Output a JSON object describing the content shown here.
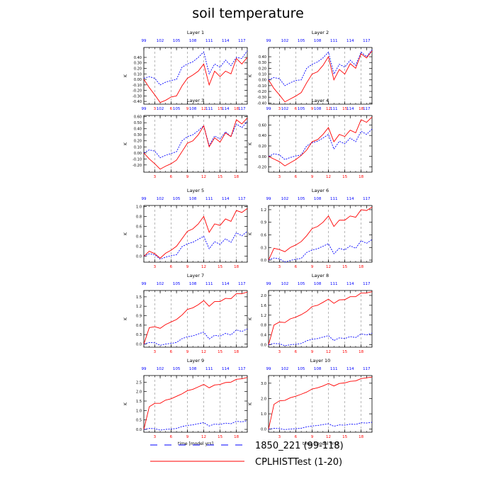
{
  "title": "soil temperature",
  "x_top_ticks": [
    "99",
    "102",
    "105",
    "108",
    "111",
    "114",
    "117"
  ],
  "x_bottom_ticks": [
    "3",
    "6",
    "9",
    "12",
    "15",
    "18"
  ],
  "xlabel": "time [model yrs]",
  "ylabel": "K",
  "colors": {
    "series_a": "#0000ff",
    "series_b": "#ff0000",
    "top_ticks": "#0000ff",
    "bottom_ticks": "#ff0000"
  },
  "legend": [
    {
      "label": "1850_221 (99-118)",
      "style": "dashed",
      "color": "#0000ff"
    },
    {
      "label": "CPLHISTTest (1-20)",
      "style": "solid",
      "color": "#ff0000"
    }
  ],
  "chart_data": [
    {
      "type": "line",
      "title": "Layer 1",
      "ylim": [
        -0.45,
        0.58
      ],
      "yticks": [
        -0.4,
        -0.3,
        -0.2,
        -0.1,
        0.0,
        0.1,
        0.2,
        0.3,
        0.4
      ],
      "ytick_labels": [
        "-0.40",
        "-0.30",
        "-0.20",
        "-0.10",
        "0.00",
        "0.10",
        "0.20",
        "0.30",
        "0.40"
      ],
      "series": [
        {
          "name": "1850_221 (99-118)",
          "values": [
            0.02,
            0.05,
            0.02,
            -0.1,
            -0.05,
            -0.02,
            0.0,
            0.22,
            0.28,
            0.32,
            0.4,
            0.5,
            0.1,
            0.28,
            0.22,
            0.35,
            0.25,
            0.4,
            0.38,
            0.52
          ]
        },
        {
          "name": "CPLHISTTest (1-20)",
          "values": [
            0.0,
            -0.15,
            -0.28,
            -0.42,
            -0.38,
            -0.32,
            -0.3,
            -0.12,
            0.02,
            0.08,
            0.15,
            0.28,
            -0.1,
            0.15,
            0.05,
            0.15,
            0.1,
            0.38,
            0.28,
            0.4
          ]
        }
      ]
    },
    {
      "type": "line",
      "title": "Layer 2",
      "ylim": [
        -0.42,
        0.56
      ],
      "yticks": [
        -0.4,
        -0.3,
        -0.2,
        -0.1,
        0.0,
        0.1,
        0.2,
        0.3,
        0.4
      ],
      "ytick_labels": [
        "-0.40",
        "-0.30",
        "-0.20",
        "-0.10",
        "0.00",
        "0.10",
        "0.20",
        "0.30",
        "0.40"
      ],
      "series": [
        {
          "name": "1850_221 (99-118)",
          "values": [
            0.0,
            0.04,
            0.02,
            -0.1,
            -0.05,
            -0.01,
            0.0,
            0.2,
            0.27,
            0.31,
            0.38,
            0.48,
            0.1,
            0.27,
            0.22,
            0.34,
            0.25,
            0.48,
            0.4,
            0.52
          ]
        },
        {
          "name": "CPLHISTTest (1-20)",
          "values": [
            0.0,
            -0.15,
            -0.26,
            -0.38,
            -0.33,
            -0.28,
            -0.22,
            -0.05,
            0.1,
            0.14,
            0.25,
            0.4,
            0.0,
            0.18,
            0.1,
            0.28,
            0.2,
            0.45,
            0.38,
            0.5
          ]
        }
      ]
    },
    {
      "type": "line",
      "title": "Layer 3",
      "ylim": [
        -0.32,
        0.62
      ],
      "yticks": [
        -0.2,
        -0.1,
        0.0,
        0.1,
        0.2,
        0.3,
        0.4,
        0.5,
        0.6
      ],
      "ytick_labels": [
        "-0.20",
        "-0.10",
        "0.00",
        "0.10",
        "0.20",
        "0.30",
        "0.40",
        "0.50",
        "0.60"
      ],
      "series": [
        {
          "name": "1850_221 (99-118)",
          "values": [
            0.0,
            0.05,
            0.03,
            -0.08,
            -0.04,
            -0.01,
            0.02,
            0.2,
            0.27,
            0.3,
            0.37,
            0.45,
            0.12,
            0.28,
            0.23,
            0.35,
            0.27,
            0.48,
            0.42,
            0.52
          ]
        },
        {
          "name": "CPLHISTTest (1-20)",
          "values": [
            0.0,
            -0.1,
            -0.18,
            -0.27,
            -0.22,
            -0.18,
            -0.12,
            0.02,
            0.16,
            0.2,
            0.3,
            0.45,
            0.1,
            0.25,
            0.18,
            0.33,
            0.27,
            0.55,
            0.48,
            0.58
          ]
        }
      ]
    },
    {
      "type": "line",
      "title": "Layer 4",
      "ylim": [
        -0.3,
        0.78
      ],
      "yticks": [
        -0.2,
        0.0,
        0.2,
        0.4,
        0.6
      ],
      "ytick_labels": [
        "-0.20",
        "0.00",
        "0.20",
        "0.40",
        "0.60"
      ],
      "series": [
        {
          "name": "1850_221 (99-118)",
          "values": [
            0.0,
            0.05,
            0.03,
            -0.06,
            -0.02,
            0.01,
            0.03,
            0.2,
            0.26,
            0.29,
            0.35,
            0.42,
            0.14,
            0.29,
            0.24,
            0.35,
            0.28,
            0.48,
            0.42,
            0.52
          ]
        },
        {
          "name": "CPLHISTTest (1-20)",
          "values": [
            0.0,
            -0.05,
            -0.1,
            -0.18,
            -0.12,
            -0.06,
            0.02,
            0.12,
            0.28,
            0.32,
            0.42,
            0.55,
            0.28,
            0.42,
            0.38,
            0.5,
            0.45,
            0.7,
            0.65,
            0.75
          ]
        }
      ]
    },
    {
      "type": "line",
      "title": "Layer 5",
      "ylim": [
        -0.12,
        1.02
      ],
      "yticks": [
        0.0,
        0.2,
        0.4,
        0.6,
        0.8,
        1.0
      ],
      "ytick_labels": [
        "0.0",
        "0.2",
        "0.4",
        "0.6",
        "0.8",
        "1.0"
      ],
      "series": [
        {
          "name": "1850_221 (99-118)",
          "values": [
            0.0,
            0.05,
            0.03,
            -0.06,
            -0.02,
            0.01,
            0.03,
            0.19,
            0.25,
            0.28,
            0.34,
            0.4,
            0.15,
            0.29,
            0.24,
            0.35,
            0.28,
            0.47,
            0.41,
            0.5
          ]
        },
        {
          "name": "CPLHISTTest (1-20)",
          "values": [
            0.0,
            0.1,
            0.05,
            -0.04,
            0.06,
            0.12,
            0.2,
            0.35,
            0.5,
            0.55,
            0.65,
            0.8,
            0.48,
            0.65,
            0.62,
            0.75,
            0.7,
            0.92,
            0.88,
            0.96
          ]
        }
      ]
    },
    {
      "type": "line",
      "title": "Layer 6",
      "ylim": [
        -0.05,
        1.3
      ],
      "yticks": [
        0.0,
        0.3,
        0.6,
        0.9,
        1.2
      ],
      "ytick_labels": [
        "0.0",
        "0.3",
        "0.6",
        "0.9",
        "1.2"
      ],
      "series": [
        {
          "name": "1850_221 (99-118)",
          "values": [
            0.0,
            0.05,
            0.03,
            -0.05,
            -0.01,
            0.02,
            0.04,
            0.18,
            0.24,
            0.27,
            0.33,
            0.39,
            0.15,
            0.28,
            0.24,
            0.34,
            0.28,
            0.46,
            0.4,
            0.49
          ]
        },
        {
          "name": "CPLHISTTest (1-20)",
          "values": [
            0.0,
            0.28,
            0.25,
            0.2,
            0.3,
            0.36,
            0.44,
            0.58,
            0.75,
            0.8,
            0.9,
            1.05,
            0.8,
            0.95,
            0.95,
            1.05,
            1.02,
            1.2,
            1.18,
            1.26
          ]
        }
      ]
    },
    {
      "type": "line",
      "title": "Layer 7",
      "ylim": [
        -0.1,
        1.7
      ],
      "yticks": [
        0.0,
        0.3,
        0.6,
        0.9,
        1.2,
        1.5
      ],
      "ytick_labels": [
        "0.0",
        "0.3",
        "0.6",
        "0.9",
        "1.2",
        "1.5"
      ],
      "series": [
        {
          "name": "1850_221 (99-118)",
          "values": [
            0.0,
            0.05,
            0.04,
            -0.04,
            0.0,
            0.02,
            0.05,
            0.17,
            0.23,
            0.26,
            0.32,
            0.38,
            0.16,
            0.28,
            0.25,
            0.34,
            0.29,
            0.45,
            0.4,
            0.48
          ]
        },
        {
          "name": "CPLHISTTest (1-20)",
          "values": [
            0.0,
            0.52,
            0.55,
            0.5,
            0.62,
            0.7,
            0.78,
            0.92,
            1.1,
            1.15,
            1.25,
            1.38,
            1.2,
            1.35,
            1.35,
            1.45,
            1.44,
            1.6,
            1.6,
            1.65
          ]
        }
      ]
    },
    {
      "type": "line",
      "title": "Layer 8",
      "ylim": [
        -0.1,
        2.2
      ],
      "yticks": [
        0.0,
        0.4,
        0.8,
        1.2,
        1.6,
        2.0
      ],
      "ytick_labels": [
        "0.0",
        "0.4",
        "0.8",
        "1.2",
        "1.6",
        "2.0"
      ],
      "series": [
        {
          "name": "1850_221 (99-118)",
          "values": [
            0.0,
            0.05,
            0.04,
            -0.04,
            0.0,
            0.02,
            0.05,
            0.16,
            0.22,
            0.25,
            0.31,
            0.37,
            0.17,
            0.28,
            0.25,
            0.33,
            0.29,
            0.44,
            0.4,
            0.47
          ]
        },
        {
          "name": "CPLHISTTest (1-20)",
          "values": [
            0.0,
            0.8,
            0.92,
            0.9,
            1.05,
            1.12,
            1.22,
            1.35,
            1.55,
            1.6,
            1.72,
            1.85,
            1.68,
            1.82,
            1.83,
            1.95,
            1.95,
            2.1,
            2.1,
            2.15
          ]
        }
      ]
    },
    {
      "type": "line",
      "title": "Layer 9",
      "ylim": [
        -0.15,
        2.85
      ],
      "yticks": [
        0.0,
        0.5,
        1.0,
        1.5,
        2.0,
        2.5
      ],
      "ytick_labels": [
        "0.0",
        "0.5",
        "1.0",
        "1.5",
        "2.0",
        "2.5"
      ],
      "series": [
        {
          "name": "1850_221 (99-118)",
          "values": [
            0.0,
            0.05,
            0.04,
            -0.04,
            0.0,
            0.02,
            0.05,
            0.15,
            0.21,
            0.24,
            0.3,
            0.36,
            0.18,
            0.28,
            0.26,
            0.33,
            0.3,
            0.43,
            0.4,
            0.46
          ]
        },
        {
          "name": "CPLHISTTest (1-20)",
          "values": [
            0.0,
            1.2,
            1.38,
            1.38,
            1.55,
            1.62,
            1.75,
            1.88,
            2.05,
            2.12,
            2.25,
            2.38,
            2.2,
            2.35,
            2.38,
            2.48,
            2.5,
            2.65,
            2.68,
            2.75
          ]
        }
      ]
    },
    {
      "type": "line",
      "title": "Layer 10",
      "ylim": [
        -0.2,
        3.5
      ],
      "yticks": [
        0.0,
        1.0,
        2.0,
        3.0
      ],
      "ytick_labels": [
        "0.0",
        "1.0",
        "2.0",
        "3.0"
      ],
      "series": [
        {
          "name": "1850_221 (99-118)",
          "values": [
            0.0,
            0.05,
            0.04,
            -0.03,
            0.01,
            0.03,
            0.06,
            0.15,
            0.21,
            0.24,
            0.3,
            0.35,
            0.19,
            0.28,
            0.26,
            0.33,
            0.31,
            0.42,
            0.4,
            0.45
          ]
        },
        {
          "name": "CPLHISTTest (1-20)",
          "values": [
            0.0,
            1.62,
            1.85,
            1.88,
            2.05,
            2.15,
            2.28,
            2.42,
            2.62,
            2.7,
            2.82,
            2.98,
            2.82,
            2.98,
            3.02,
            3.12,
            3.15,
            3.3,
            3.35,
            3.4
          ]
        }
      ]
    }
  ]
}
